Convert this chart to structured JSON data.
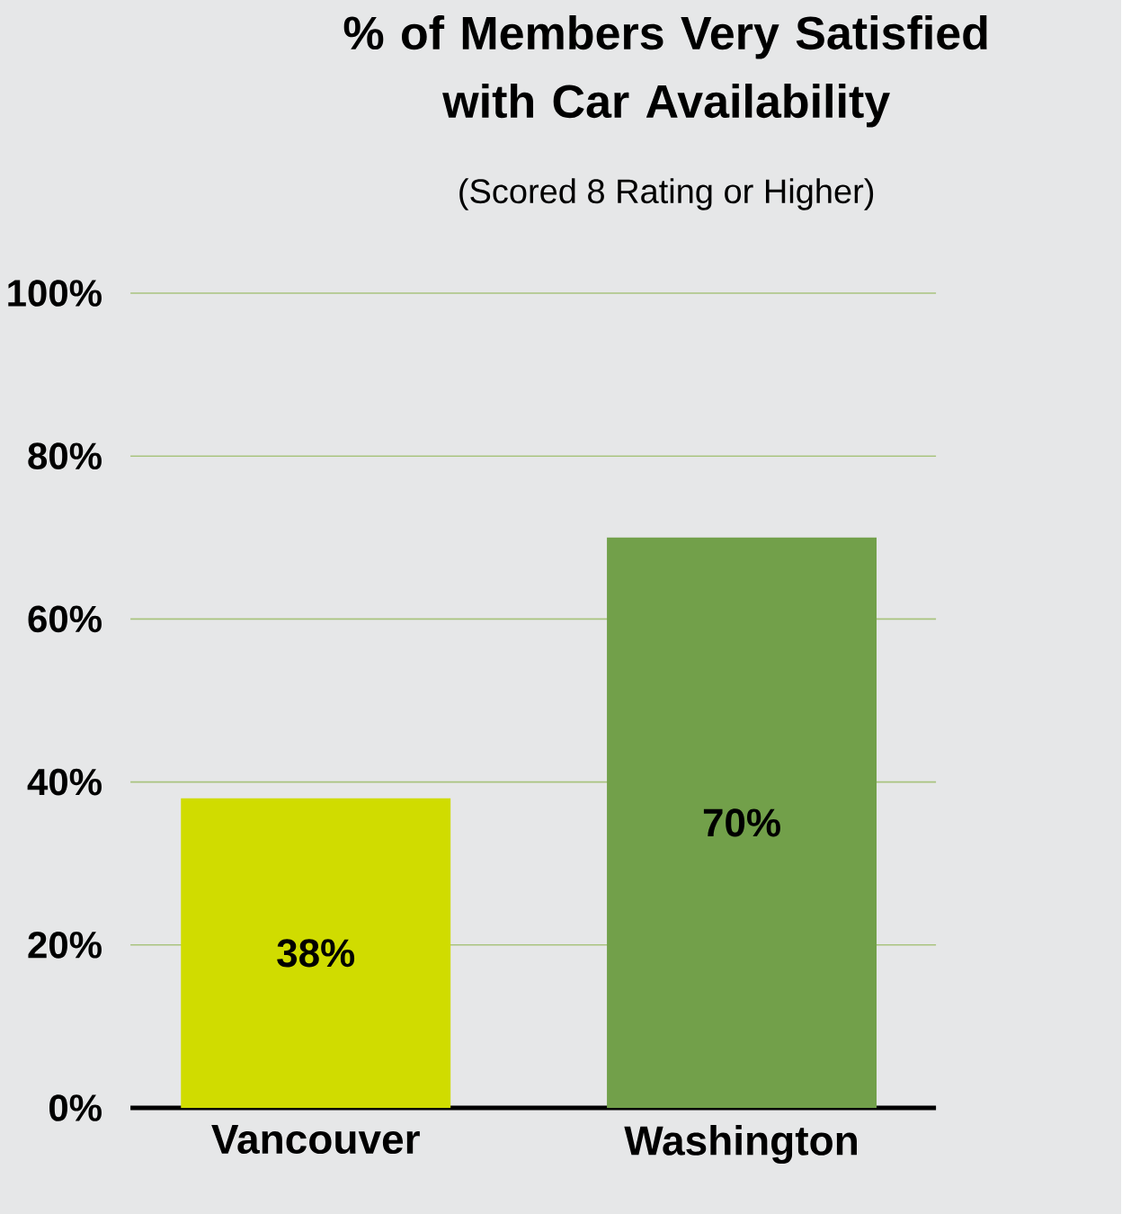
{
  "chart_data": {
    "type": "bar",
    "title": "% of Members Very Satisfied with Car Availability",
    "subtitle": "(Scored 8 Rating or Higher)",
    "categories": [
      "Vancouver",
      "Washington"
    ],
    "values": [
      38,
      70
    ],
    "value_labels": [
      "38%",
      "70%"
    ],
    "colors": [
      "#d0dc00",
      "#72a04a"
    ],
    "ylim": [
      0,
      100
    ],
    "yticks": [
      {
        "value": 0,
        "label": "0%"
      },
      {
        "value": 20,
        "label": "20%"
      },
      {
        "value": 40,
        "label": "40%"
      },
      {
        "value": 60,
        "label": "60%"
      },
      {
        "value": 80,
        "label": "80%"
      },
      {
        "value": 100,
        "label": "100%"
      }
    ],
    "grid": "y"
  }
}
